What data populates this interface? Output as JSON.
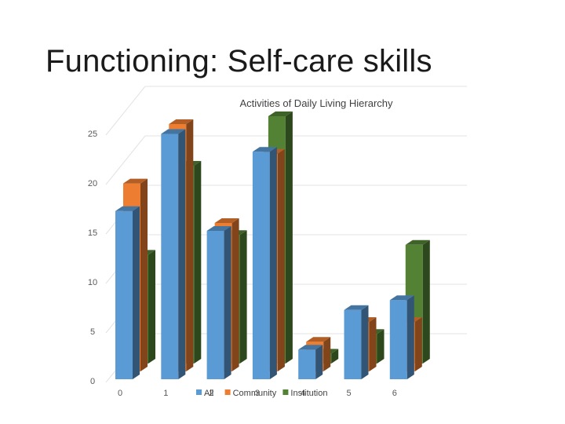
{
  "slide": {
    "title": "Functioning: Self-care skills"
  },
  "chart_data": {
    "type": "bar",
    "title": "Activities of Daily Living Hierarchy",
    "xlabel": "",
    "ylabel": "",
    "ylim": [
      0,
      25
    ],
    "y_ticks": [
      0,
      5,
      10,
      15,
      20,
      25
    ],
    "categories": [
      "0",
      "1",
      "2",
      "3",
      "4",
      "5",
      "6"
    ],
    "series": [
      {
        "name": "All",
        "color": "#5B9BD5",
        "values": [
          17,
          24.8,
          15,
          23,
          3,
          7,
          8
        ]
      },
      {
        "name": "Community",
        "color": "#ED7D31",
        "values": [
          19,
          25,
          15,
          22,
          3,
          5,
          5
        ]
      },
      {
        "name": "Institution",
        "color": "#548235",
        "values": [
          11,
          20,
          13,
          25,
          1,
          3,
          12
        ]
      }
    ],
    "legend_position": "bottom",
    "grid": true,
    "style": "3d-clustered-column"
  }
}
